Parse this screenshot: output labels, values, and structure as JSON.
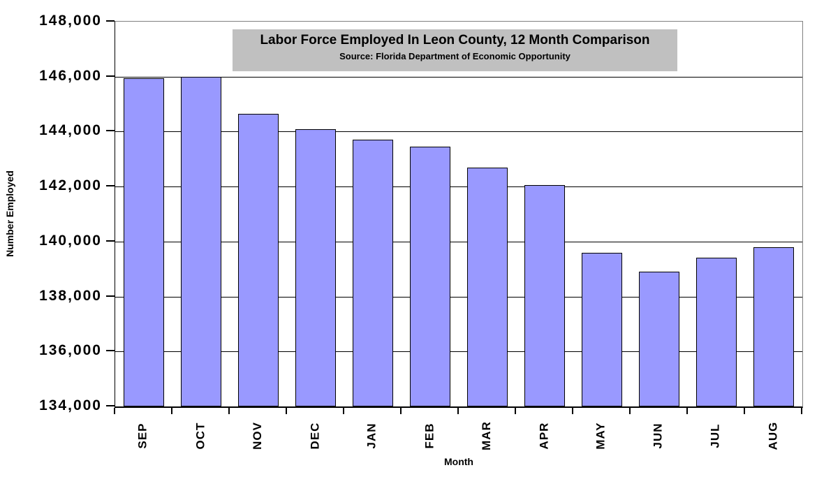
{
  "chart_data": {
    "type": "bar",
    "title": "Labor Force Employed In Leon County, 12 Month Comparison",
    "subtitle": "Source: Florida Department of Economic Opportunity",
    "xlabel": "Month",
    "ylabel": "Number Employed",
    "categories": [
      "SEP",
      "OCT",
      "NOV",
      "DEC",
      "JAN",
      "FEB",
      "MAR",
      "APR",
      "MAY",
      "JUN",
      "JUL",
      "AUG"
    ],
    "values": [
      145950,
      146000,
      144650,
      144100,
      143700,
      143450,
      142700,
      142050,
      139600,
      138900,
      139400,
      139800
    ],
    "ylim": [
      134000,
      148000
    ],
    "ytick_step": 2000,
    "ytick_labels": [
      "148,000",
      "146,000",
      "144,000",
      "142,000",
      "140,000",
      "138,000",
      "136,000",
      "134,000"
    ],
    "grid": true,
    "legend": "none",
    "colors": {
      "bar_fill": "#9999FF",
      "bar_border": "#000000",
      "gridline": "#000000",
      "plot_border_gray": "#808080",
      "axis_line": "#000000",
      "title_box_bg": "#C0C0C0",
      "background": "#FFFFFF",
      "text": "#000000"
    }
  }
}
